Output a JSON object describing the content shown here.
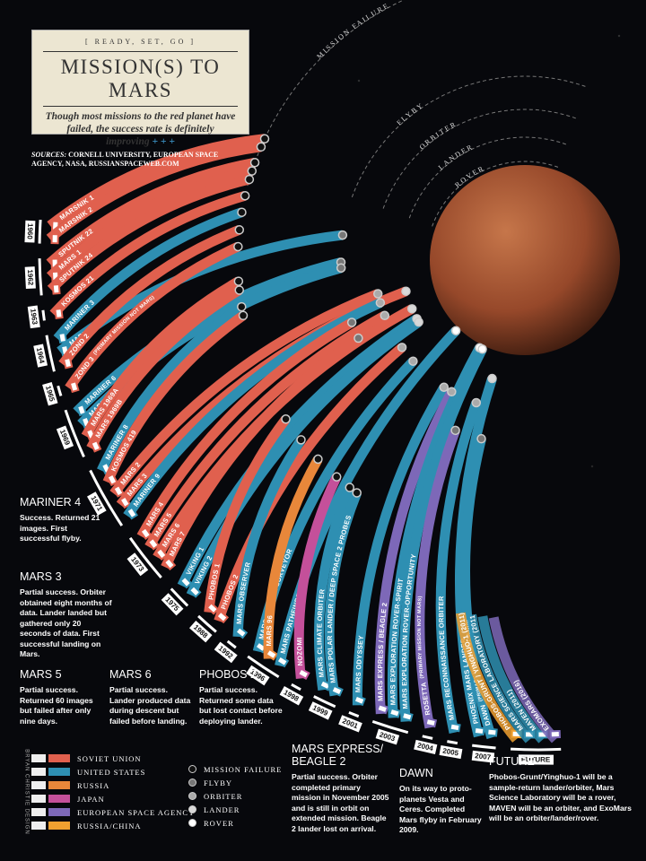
{
  "header": {
    "kicker": "[ READY, SET, GO ]",
    "title": "MISSION(S) TO MARS",
    "subtitle": "Though most missions to the red planet have failed, the success rate is definitely improving",
    "subtitle_mark": "+ + +"
  },
  "sources": {
    "label": "SOURCES:",
    "text": "CORNELL UNIVERSITY, EUROPEAN SPACE AGENCY, NASA, RUSSIANSPACEWEB.COM"
  },
  "legend": {
    "countries": [
      {
        "name": "SOVIET UNION",
        "color": "#e0604e"
      },
      {
        "name": "UNITED STATES",
        "color": "#2e8fb2"
      },
      {
        "name": "RUSSIA",
        "color": "#e8873a"
      },
      {
        "name": "JAPAN",
        "color": "#c4509a"
      },
      {
        "name": "EUROPEAN SPACE AGENCY",
        "color": "#7d68b8"
      },
      {
        "name": "RUSSIA/CHINA",
        "color": "#f0a030"
      }
    ],
    "outcomes": [
      {
        "name": "MISSION FAILURE",
        "color": "#111111"
      },
      {
        "name": "FLYBY",
        "color": "#777777"
      },
      {
        "name": "ORBITER",
        "color": "#aaaaaa"
      },
      {
        "name": "LANDER",
        "color": "#d8d8d8"
      },
      {
        "name": "ROVER",
        "color": "#ffffff"
      }
    ]
  },
  "years": [
    {
      "year": "1960",
      "missions": [
        {
          "name": "MARSNIK 1",
          "country": "SOVIET UNION",
          "outcome": "MISSION FAILURE"
        },
        {
          "name": "MARSNIK 2",
          "country": "SOVIET UNION",
          "outcome": "MISSION FAILURE"
        }
      ]
    },
    {
      "year": "1962",
      "missions": [
        {
          "name": "SPUTNIK 22",
          "country": "SOVIET UNION",
          "outcome": "MISSION FAILURE"
        },
        {
          "name": "MARS 1",
          "country": "SOVIET UNION",
          "outcome": "MISSION FAILURE"
        },
        {
          "name": "SPUTNIK 24",
          "country": "SOVIET UNION",
          "outcome": "MISSION FAILURE"
        }
      ]
    },
    {
      "year": "1963",
      "missions": [
        {
          "name": "KOSMOS 21",
          "country": "SOVIET UNION",
          "outcome": "MISSION FAILURE"
        }
      ]
    },
    {
      "year": "1964",
      "missions": [
        {
          "name": "MARINER 3",
          "country": "UNITED STATES",
          "outcome": "MISSION FAILURE"
        },
        {
          "name": "MARINER 4",
          "country": "UNITED STATES",
          "outcome": "FLYBY"
        },
        {
          "name": "ZOND 2",
          "country": "SOVIET UNION",
          "outcome": "MISSION FAILURE"
        }
      ]
    },
    {
      "year": "1965",
      "missions": [
        {
          "name": "ZOND 3",
          "note": "(PRIMARY MISSION NOT MARS)",
          "country": "SOVIET UNION",
          "outcome": "MISSION FAILURE"
        }
      ]
    },
    {
      "year": "1969",
      "missions": [
        {
          "name": "MARINER 6",
          "country": "UNITED STATES",
          "outcome": "FLYBY"
        },
        {
          "name": "MARINER 7",
          "country": "UNITED STATES",
          "outcome": "FLYBY"
        },
        {
          "name": "MARS 1969A",
          "country": "SOVIET UNION",
          "outcome": "MISSION FAILURE"
        },
        {
          "name": "MARS 1969B",
          "country": "SOVIET UNION",
          "outcome": "MISSION FAILURE"
        }
      ]
    },
    {
      "year": "1971",
      "missions": [
        {
          "name": "MARINER 8",
          "country": "UNITED STATES",
          "outcome": "MISSION FAILURE"
        },
        {
          "name": "KOSMOS 419",
          "country": "SOVIET UNION",
          "outcome": "MISSION FAILURE"
        },
        {
          "name": "MARS 2",
          "country": "SOVIET UNION",
          "outcome": "ORBITER"
        },
        {
          "name": "MARS 3",
          "country": "SOVIET UNION",
          "outcome": "LANDER"
        },
        {
          "name": "MARINER 9",
          "country": "UNITED STATES",
          "outcome": "ORBITER"
        }
      ]
    },
    {
      "year": "1973",
      "missions": [
        {
          "name": "MARS 4",
          "country": "SOVIET UNION",
          "outcome": "FLYBY"
        },
        {
          "name": "MARS 5",
          "country": "SOVIET UNION",
          "outcome": "ORBITER"
        },
        {
          "name": "MARS 6",
          "country": "SOVIET UNION",
          "outcome": "LANDER"
        },
        {
          "name": "MARS 7",
          "country": "SOVIET UNION",
          "outcome": "FLYBY"
        }
      ]
    },
    {
      "year": "1975",
      "missions": [
        {
          "name": "VIKING 1",
          "country": "UNITED STATES",
          "outcome": "LANDER"
        },
        {
          "name": "VIKING 2",
          "country": "UNITED STATES",
          "outcome": "LANDER"
        }
      ]
    },
    {
      "year": "1988",
      "missions": [
        {
          "name": "PHOBOS 1",
          "country": "SOVIET UNION",
          "outcome": "MISSION FAILURE"
        },
        {
          "name": "PHOBOS 2",
          "country": "SOVIET UNION",
          "outcome": "ORBITER"
        }
      ]
    },
    {
      "year": "1992",
      "missions": [
        {
          "name": "MARS OBSERVER",
          "country": "UNITED STATES",
          "outcome": "MISSION FAILURE"
        }
      ]
    },
    {
      "year": "1996",
      "missions": [
        {
          "name": "MARS GLOBAL SURVEYOR",
          "country": "UNITED STATES",
          "outcome": "ORBITER"
        },
        {
          "name": "MARS 96",
          "country": "RUSSIA",
          "outcome": "MISSION FAILURE"
        },
        {
          "name": "MARS PATHFINDER",
          "country": "UNITED STATES",
          "outcome": "ROVER"
        }
      ]
    },
    {
      "year": "1998",
      "missions": [
        {
          "name": "NOZOMI",
          "country": "JAPAN",
          "outcome": "MISSION FAILURE"
        }
      ]
    },
    {
      "year": "1999",
      "missions": [
        {
          "name": "MARS CLIMATE ORBITER",
          "country": "UNITED STATES",
          "outcome": "MISSION FAILURE"
        },
        {
          "name": "MARS POLAR LANDER / DEEP SPACE 2 PROBES",
          "country": "UNITED STATES",
          "outcome": "MISSION FAILURE"
        }
      ]
    },
    {
      "year": "2001",
      "missions": [
        {
          "name": "MARS ODYSSEY",
          "country": "UNITED STATES",
          "outcome": "ORBITER"
        }
      ]
    },
    {
      "year": "2003",
      "missions": [
        {
          "name": "MARS EXPRESS / BEAGLE 2",
          "country": "EUROPEAN SPACE AGENCY",
          "outcome": "ORBITER"
        },
        {
          "name": "MARS EXPLORATION ROVER-SPIRIT",
          "country": "UNITED STATES",
          "outcome": "ROVER"
        },
        {
          "name": "MARS EXPLORATION ROVER-OPPORTUNITY",
          "country": "UNITED STATES",
          "outcome": "ROVER"
        }
      ]
    },
    {
      "year": "2004",
      "missions": [
        {
          "name": "ROSETTA",
          "note": "(PRIMARY MISSION NOT MARS)",
          "country": "EUROPEAN SPACE AGENCY",
          "outcome": "FLYBY"
        }
      ]
    },
    {
      "year": "2005",
      "missions": [
        {
          "name": "MARS RECONNAISSANCE ORBITER",
          "country": "UNITED STATES",
          "outcome": "ORBITER"
        }
      ]
    },
    {
      "year": "2007",
      "missions": [
        {
          "name": "PHOENIX MARS LANDER",
          "country": "UNITED STATES",
          "outcome": "LANDER"
        },
        {
          "name": "DAWN",
          "note": "(PRIMARY MISSION NOT MARS)",
          "country": "UNITED STATES",
          "outcome": "FLYBY"
        }
      ]
    },
    {
      "year": "FUTURE",
      "missions": [
        {
          "name": "PHOBOS-GRUNT / YINGHUO-1 (2011)",
          "country": "RUSSIA/CHINA"
        },
        {
          "name": "MARS SCIENCE LABORATORY (2011)",
          "country": "UNITED STATES"
        },
        {
          "name": "MAVEN (2011)",
          "country": "UNITED STATES"
        },
        {
          "name": "EXOMARS (2016)",
          "country": "EUROPEAN SPACE AGENCY"
        }
      ]
    }
  ],
  "annotations": [
    {
      "title": "MARINER 4",
      "text": "Success. Returned 21 images. First successful flyby."
    },
    {
      "title": "MARS 3",
      "text": "Partial success. Orbiter obtained eight months of data. Lander landed but gathered only 20 seconds of data. First successful landing on Mars."
    },
    {
      "title": "MARS 5",
      "text": "Partial success. Returned 60 images but failed after only nine days."
    },
    {
      "title": "MARS 6",
      "text": "Partial success. Lander produced data during descent but failed before landing."
    },
    {
      "title": "PHOBOS 2",
      "text": "Partial success. Returned some data but lost contact before deploying lander."
    },
    {
      "title": "MARS EXPRESS/ BEAGLE 2",
      "text": "Partial success. Orbiter completed primary mission in November 2005 and is still in orbit on extended mission. Beagle 2 lander lost on arrival."
    },
    {
      "title": "DAWN",
      "text": "On its way to proto-planets Vesta and Ceres. Completed Mars flyby in February 2009."
    },
    {
      "title": "FUTURE",
      "text": "Phobos-Grunt/Yinghuo-1 will be a sample-return lander/orbiter, Mars Science Laboratory will be a rover, MAVEN will be an orbiter, and ExoMars will be an orbiter/lander/rover."
    }
  ],
  "credit": "BRYAN CHRISTIE DESIGN"
}
